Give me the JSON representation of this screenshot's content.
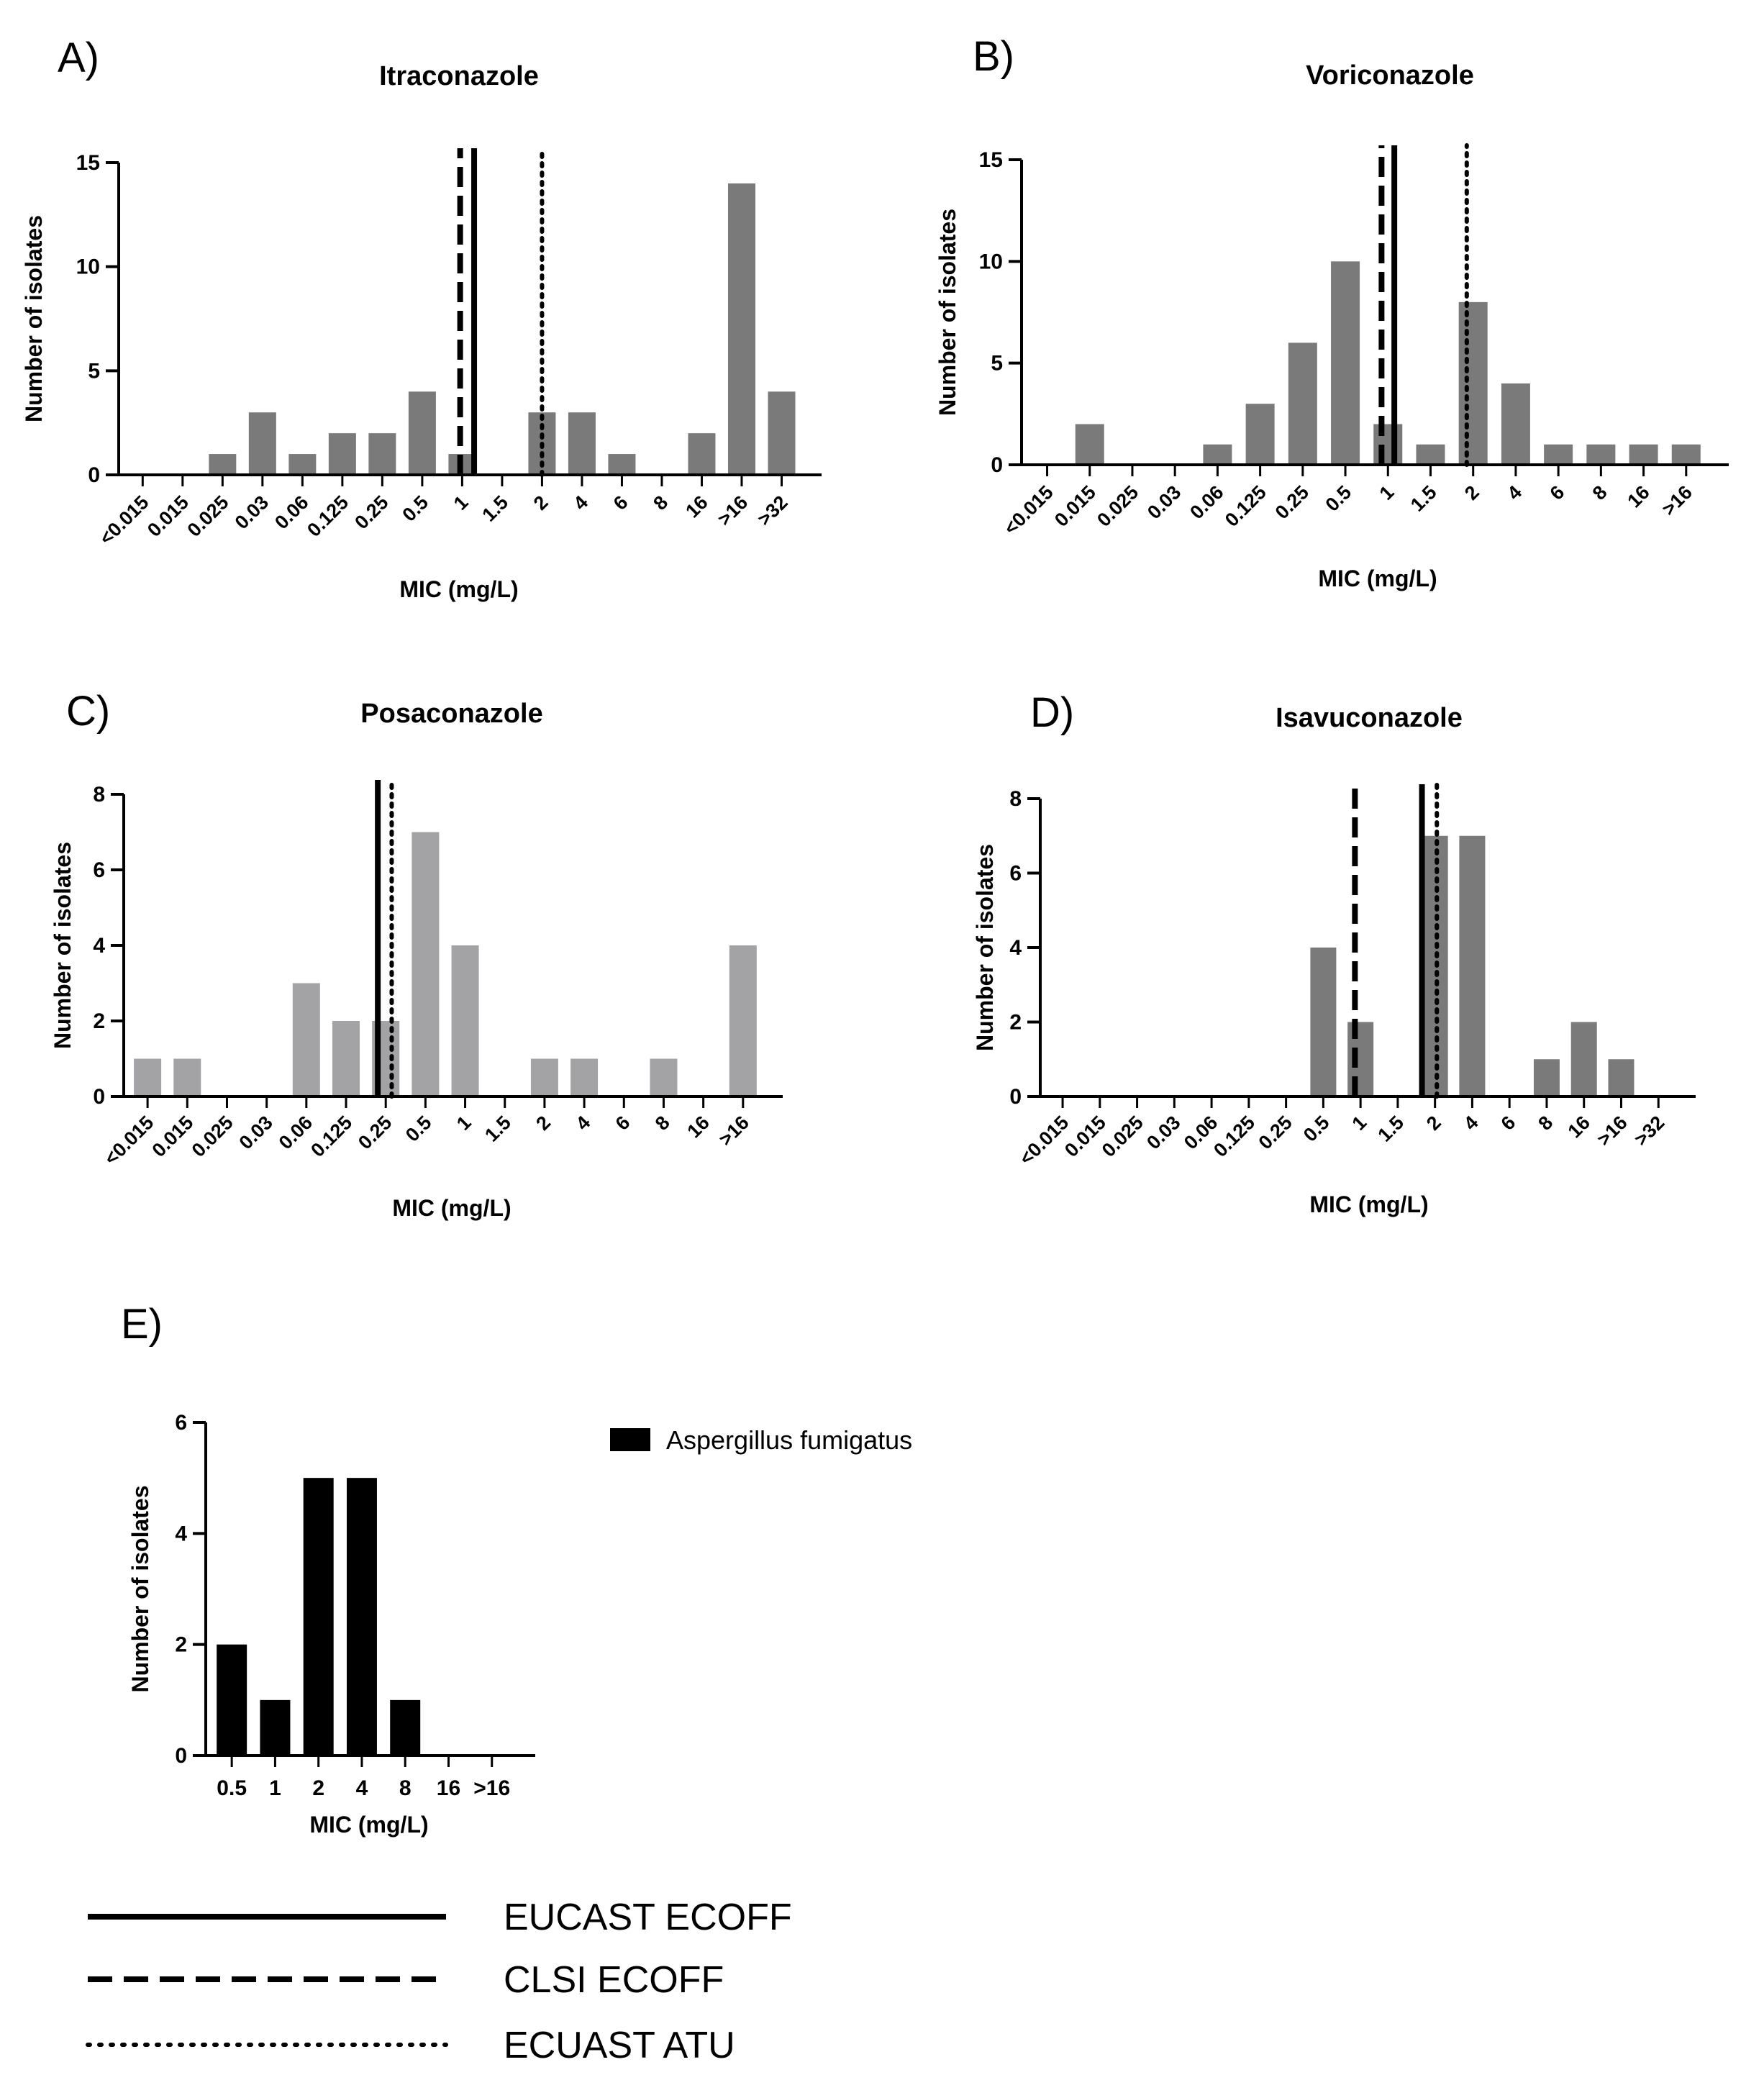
{
  "chart_data": [
    {
      "id": "A",
      "panel_label": "A)",
      "type": "bar",
      "title": "Itraconazole",
      "xlabel": "MIC (mg/L)",
      "ylabel": "Number of isolates",
      "ylim": [
        0,
        15
      ],
      "yticks": [
        0,
        5,
        10,
        15
      ],
      "categories": [
        "<0.015",
        "0.015",
        "0.025",
        "0.03",
        "0.06",
        "0.125",
        "0.25",
        "0.5",
        "1",
        "1.5",
        "2",
        "4",
        "6",
        "8",
        "16",
        ">16",
        ">32"
      ],
      "values": [
        0,
        0,
        1,
        3,
        1,
        2,
        2,
        4,
        1,
        0,
        3,
        3,
        1,
        0,
        2,
        14,
        4
      ],
      "bar_color": "#7a7a7a",
      "reference_lines": [
        {
          "name": "CLSI ECOFF",
          "style": "dashed",
          "position": 7.95
        },
        {
          "name": "EUCAST ECOFF",
          "style": "solid",
          "position": 8.3
        },
        {
          "name": "ECUAST ATU",
          "style": "dotted",
          "position": 10.0
        }
      ]
    },
    {
      "id": "B",
      "panel_label": "B)",
      "type": "bar",
      "title": "Voriconazole",
      "xlabel": "MIC (mg/L)",
      "ylabel": "Number of isolates",
      "ylim": [
        0,
        15
      ],
      "yticks": [
        0,
        5,
        10,
        15
      ],
      "categories": [
        "<0.015",
        "0.015",
        "0.025",
        "0.03",
        "0.06",
        "0.125",
        "0.25",
        "0.5",
        "1",
        "1.5",
        "2",
        "4",
        "6",
        "8",
        "16",
        ">16"
      ],
      "values": [
        0,
        2,
        0,
        0,
        1,
        3,
        6,
        10,
        2,
        1,
        8,
        4,
        1,
        1,
        1,
        1
      ],
      "bar_color": "#7a7a7a",
      "reference_lines": [
        {
          "name": "CLSI ECOFF",
          "style": "dashed",
          "position": 7.85
        },
        {
          "name": "EUCAST ECOFF",
          "style": "solid",
          "position": 8.15
        },
        {
          "name": "ECUAST ATU",
          "style": "dotted",
          "position": 9.85
        }
      ]
    },
    {
      "id": "C",
      "panel_label": "C)",
      "type": "bar",
      "title": "Posaconazole",
      "xlabel": "MIC (mg/L)",
      "ylabel": "Number of isolates",
      "ylim": [
        0,
        8
      ],
      "yticks": [
        0,
        2,
        4,
        6,
        8
      ],
      "categories": [
        "<0.015",
        "0.015",
        "0.025",
        "0.03",
        "0.06",
        "0.125",
        "0.25",
        "0.5",
        "1",
        "1.5",
        "2",
        "4",
        "6",
        "8",
        "16",
        ">16"
      ],
      "values": [
        1,
        1,
        0,
        0,
        3,
        2,
        2,
        7,
        4,
        0,
        1,
        1,
        0,
        1,
        0,
        4
      ],
      "bar_color": "#a3a3a6",
      "reference_lines": [
        {
          "name": "EUCAST ECOFF",
          "style": "solid",
          "position": 5.8
        },
        {
          "name": "ECUAST ATU",
          "style": "dotted",
          "position": 6.15
        }
      ]
    },
    {
      "id": "D",
      "panel_label": "D)",
      "type": "bar",
      "title": "Isavuconazole",
      "xlabel": "MIC (mg/L)",
      "ylabel": "Number of isolates",
      "ylim": [
        0,
        8
      ],
      "yticks": [
        0,
        2,
        4,
        6,
        8
      ],
      "categories": [
        "<0.015",
        "0.015",
        "0.025",
        "0.03",
        "0.06",
        "0.125",
        "0.25",
        "0.5",
        "1",
        "1.5",
        "2",
        "4",
        "6",
        "8",
        "16",
        ">16",
        ">32"
      ],
      "values": [
        0,
        0,
        0,
        0,
        0,
        0,
        0,
        4,
        2,
        0,
        7,
        7,
        0,
        1,
        2,
        1,
        0
      ],
      "bar_color": "#7a7a7a",
      "reference_lines": [
        {
          "name": "CLSI ECOFF",
          "style": "dashed",
          "position": 7.85
        },
        {
          "name": "EUCAST ECOFF",
          "style": "solid",
          "position": 9.65
        },
        {
          "name": "ECUAST ATU",
          "style": "dotted",
          "position": 10.05
        }
      ]
    },
    {
      "id": "E",
      "panel_label": "E)",
      "type": "bar",
      "title": "",
      "xlabel": "MIC (mg/L)",
      "ylabel": "Number of isolates",
      "ylim": [
        0,
        6
      ],
      "yticks": [
        0,
        2,
        4,
        6
      ],
      "categories": [
        "0.5",
        "1",
        "2",
        "4",
        "8",
        "16",
        ">16"
      ],
      "values": [
        2,
        1,
        5,
        5,
        1,
        0,
        0
      ],
      "bar_color": "#000000",
      "legend": [
        {
          "label": "Aspergillus fumigatus",
          "color": "#000000"
        }
      ],
      "reference_lines": []
    }
  ],
  "line_legend": [
    {
      "label": "EUCAST ECOFF",
      "style": "solid"
    },
    {
      "label": "CLSI ECOFF",
      "style": "dashed"
    },
    {
      "label": "ECUAST ATU",
      "style": "dotted"
    }
  ]
}
